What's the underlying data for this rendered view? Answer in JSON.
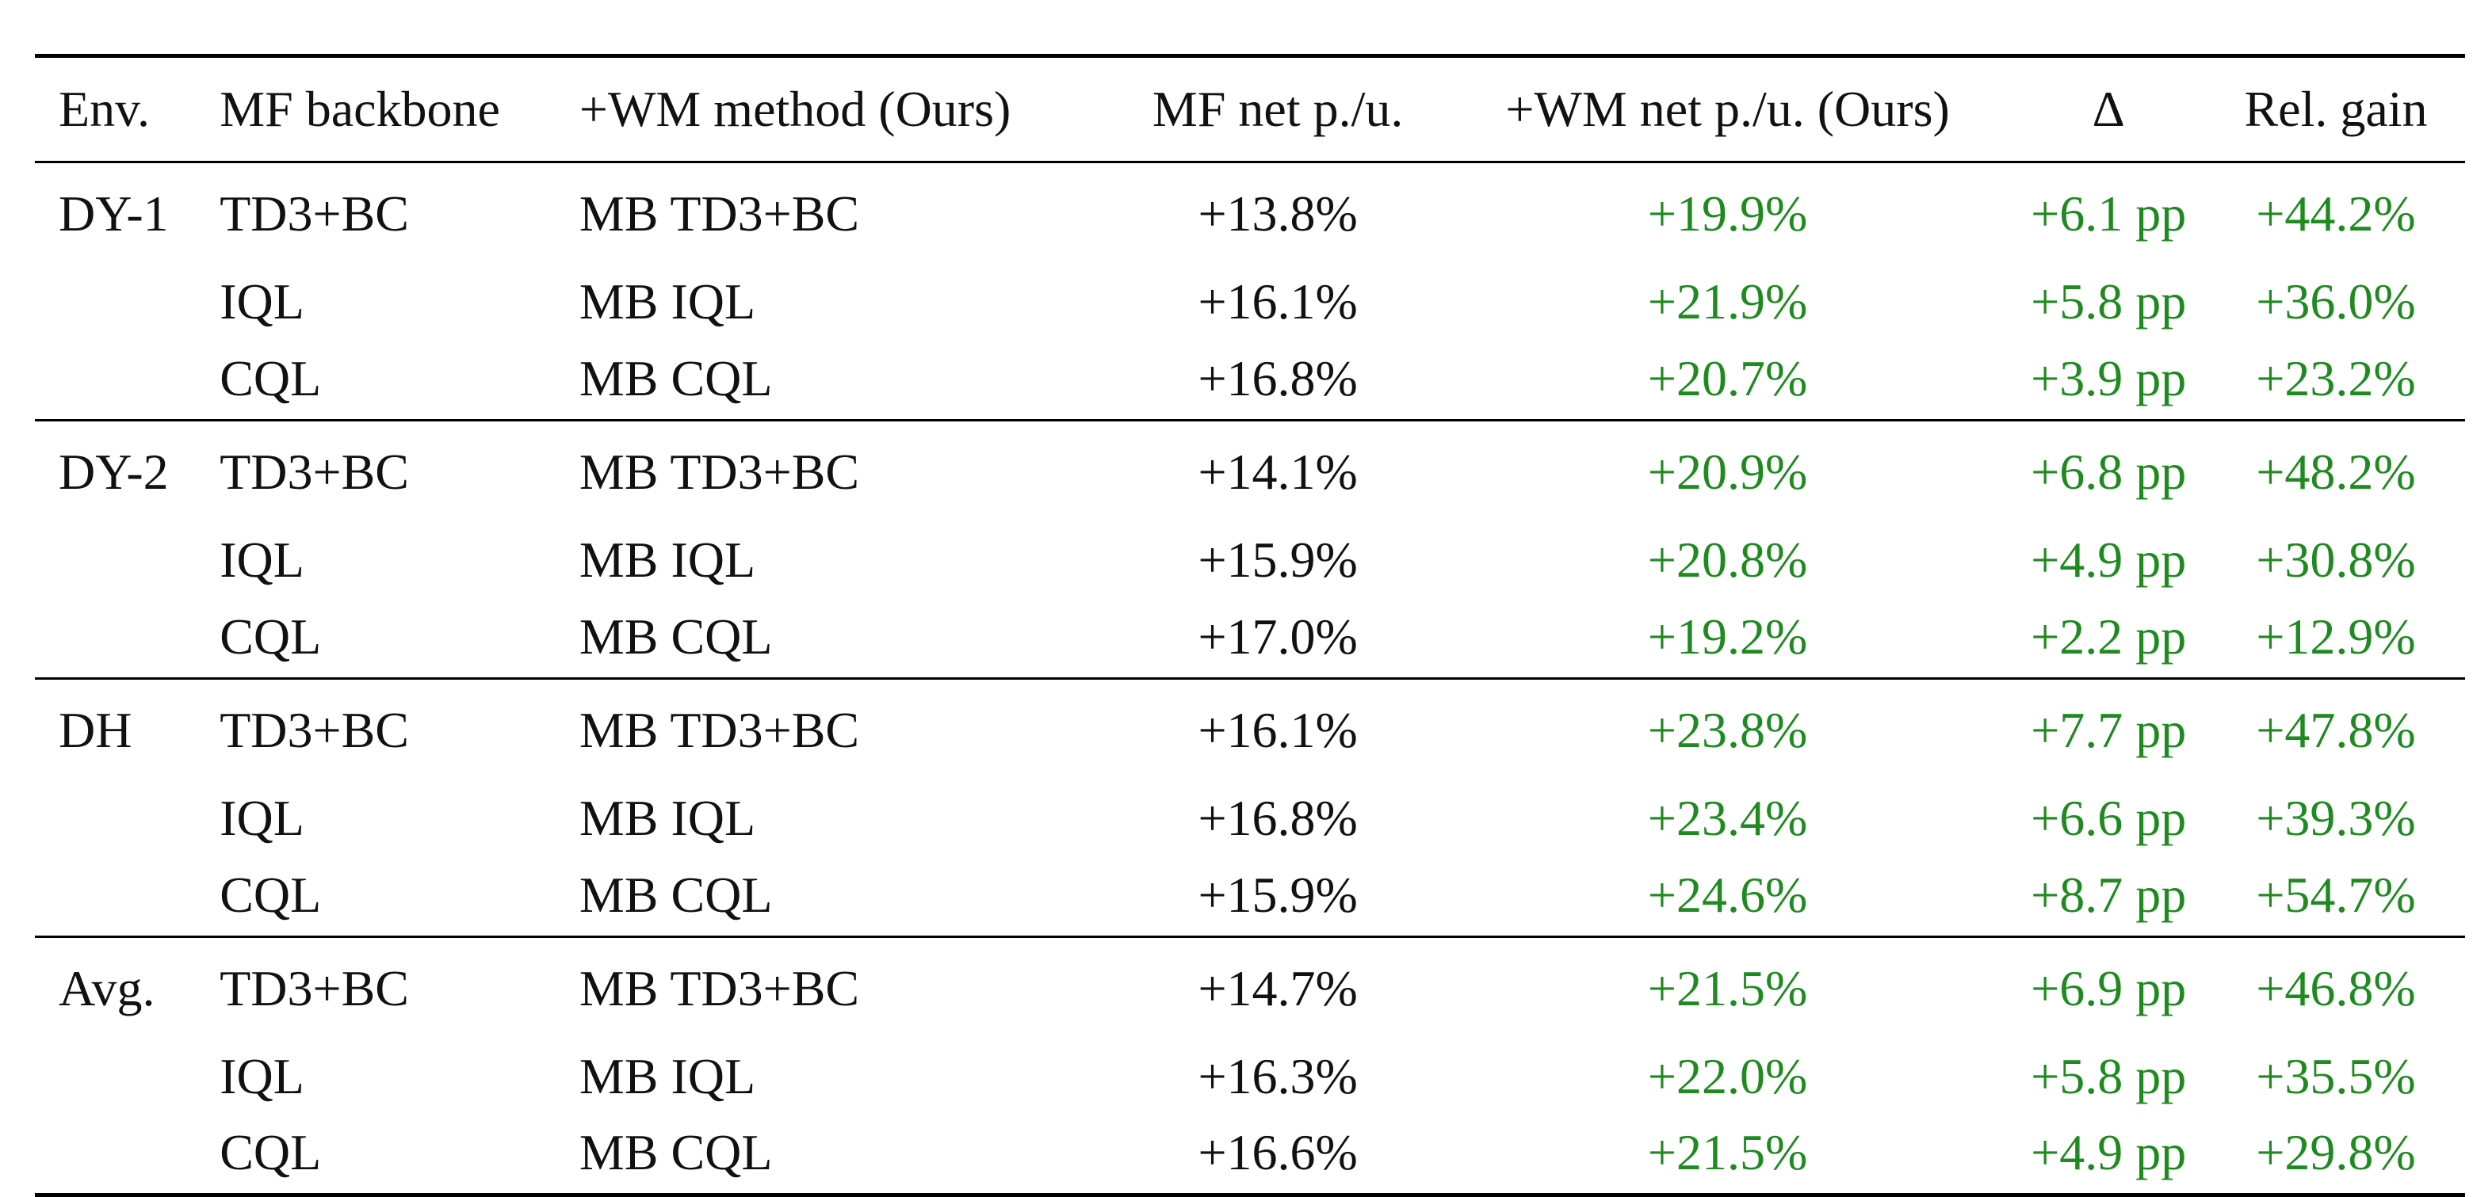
{
  "table": {
    "headers": [
      "Env.",
      "MF backbone",
      "+WM method (Ours)",
      "MF net p./u.",
      "+WM net p./u. (Ours)",
      "Δ",
      "Rel. gain"
    ],
    "groups": [
      {
        "env": "DY-1",
        "rows": [
          {
            "mf": "TD3+BC",
            "wm": "MB TD3+BC",
            "mf_net": "+13.8%",
            "wm_net": "+19.9%",
            "delta": "+6.1 pp",
            "rel": "+44.2%"
          },
          {
            "mf": "IQL",
            "wm": "MB IQL",
            "mf_net": "+16.1%",
            "wm_net": "+21.9%",
            "delta": "+5.8 pp",
            "rel": "+36.0%"
          },
          {
            "mf": "CQL",
            "wm": "MB CQL",
            "mf_net": "+16.8%",
            "wm_net": "+20.7%",
            "delta": "+3.9 pp",
            "rel": "+23.2%"
          }
        ]
      },
      {
        "env": "DY-2",
        "rows": [
          {
            "mf": "TD3+BC",
            "wm": "MB TD3+BC",
            "mf_net": "+14.1%",
            "wm_net": "+20.9%",
            "delta": "+6.8 pp",
            "rel": "+48.2%"
          },
          {
            "mf": "IQL",
            "wm": "MB IQL",
            "mf_net": "+15.9%",
            "wm_net": "+20.8%",
            "delta": "+4.9 pp",
            "rel": "+30.8%"
          },
          {
            "mf": "CQL",
            "wm": "MB CQL",
            "mf_net": "+17.0%",
            "wm_net": "+19.2%",
            "delta": "+2.2 pp",
            "rel": "+12.9%"
          }
        ]
      },
      {
        "env": "DH",
        "rows": [
          {
            "mf": "TD3+BC",
            "wm": "MB TD3+BC",
            "mf_net": "+16.1%",
            "wm_net": "+23.8%",
            "delta": "+7.7 pp",
            "rel": "+47.8%"
          },
          {
            "mf": "IQL",
            "wm": "MB IQL",
            "mf_net": "+16.8%",
            "wm_net": "+23.4%",
            "delta": "+6.6 pp",
            "rel": "+39.3%"
          },
          {
            "mf": "CQL",
            "wm": "MB CQL",
            "mf_net": "+15.9%",
            "wm_net": "+24.6%",
            "delta": "+8.7 pp",
            "rel": "+54.7%"
          }
        ]
      },
      {
        "env": "Avg.",
        "rows": [
          {
            "mf": "TD3+BC",
            "wm": "MB TD3+BC",
            "mf_net": "+14.7%",
            "wm_net": "+21.5%",
            "delta": "+6.9 pp",
            "rel": "+46.8%"
          },
          {
            "mf": "IQL",
            "wm": "MB IQL",
            "mf_net": "+16.3%",
            "wm_net": "+22.0%",
            "delta": "+5.8 pp",
            "rel": "+35.5%"
          },
          {
            "mf": "CQL",
            "wm": "MB CQL",
            "mf_net": "+16.6%",
            "wm_net": "+21.5%",
            "delta": "+4.9 pp",
            "rel": "+29.8%"
          }
        ]
      }
    ],
    "colors": {
      "text": "#111111",
      "gain": "#1f8a1f"
    }
  }
}
